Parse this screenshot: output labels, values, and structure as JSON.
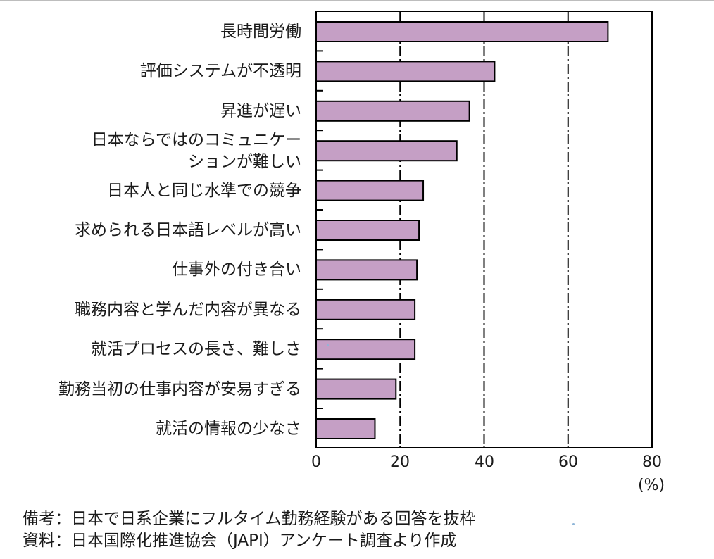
{
  "chart_data": {
    "type": "bar",
    "orientation": "horizontal",
    "categories": [
      "長時間労働",
      "評価システムが不透明",
      "昇進が遅い",
      "日本ならではのコミュニケー\nションが難しい",
      "日本人と同じ水準での競争",
      "求められる日本語レベルが高い",
      "仕事外の付き合い",
      "職務内容と学んだ内容が異なる",
      "就活プロセスの長さ、難しさ",
      "勤務当初の仕事内容が安易すぎる",
      "就活の情報の少なさ"
    ],
    "values": [
      69.5,
      42.5,
      36.5,
      33.5,
      25.5,
      24.5,
      24.0,
      23.5,
      23.5,
      19.0,
      14.0
    ],
    "xlim": [
      0,
      80
    ],
    "x_ticks": [
      "0",
      "20",
      "40",
      "60",
      "80"
    ],
    "unit": "(%)",
    "grid": "vertical dash-dot lines at 20, 40, 60",
    "bar_color": "#c59fc5"
  },
  "notes": {
    "line1": "備考：日本で日系企業にフルタイム勤務経験がある回答を抜枠",
    "line2": "資料：日本国際化推進協会（JAPI）アンケート調査より作成"
  }
}
